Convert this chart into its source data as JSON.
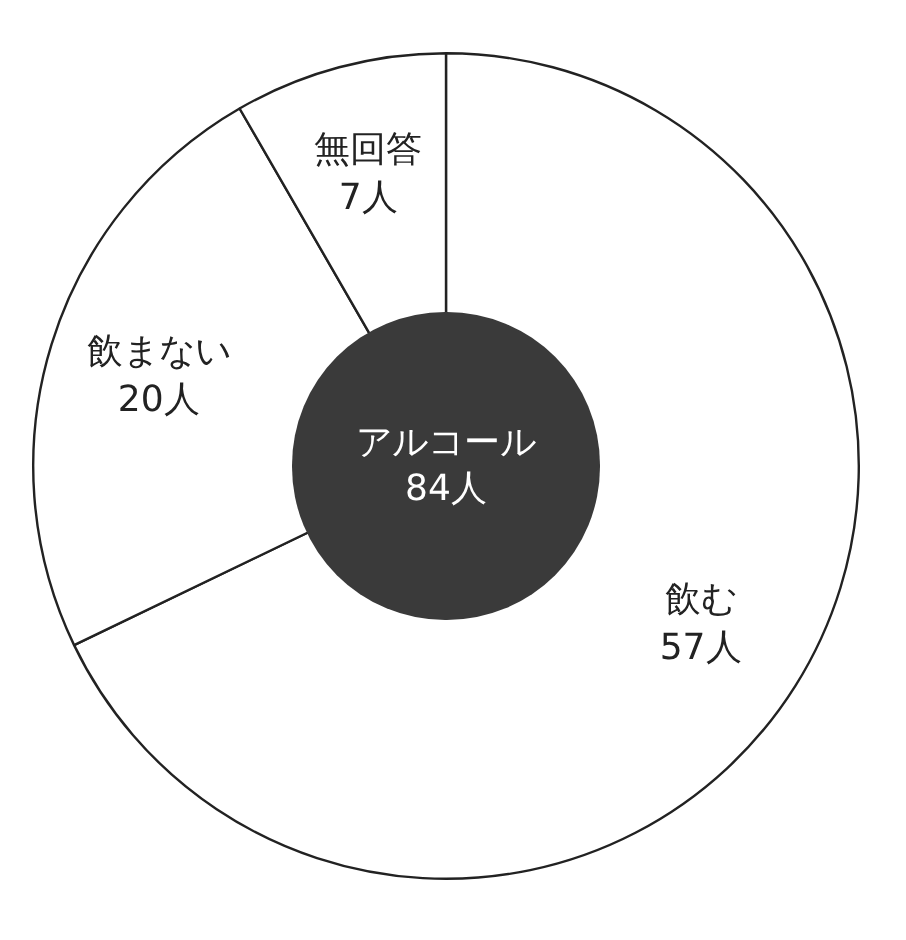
{
  "chart_data": {
    "type": "donut",
    "title": "アルコール",
    "subtitle": "84人",
    "categories": [
      "飲む",
      "飲まない",
      "無回答"
    ],
    "values": [
      57,
      20,
      7
    ],
    "value_labels": [
      "57人",
      "20人",
      "7人"
    ],
    "colors": [
      "#ffffff",
      "#ffffff",
      "#ffffff"
    ],
    "legend": false
  }
}
